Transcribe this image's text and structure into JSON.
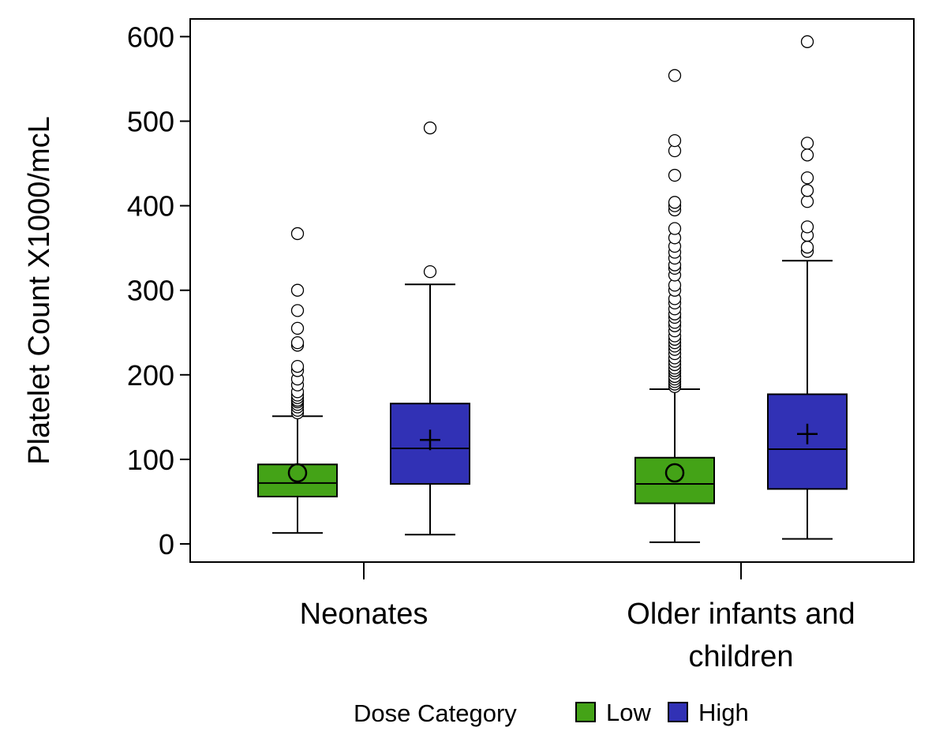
{
  "chart_data": {
    "type": "boxplot",
    "ylabel": "Platelet Count X1000/mcL",
    "xlabel": "",
    "ylim": [
      -20,
      625
    ],
    "yticks": [
      0,
      100,
      200,
      300,
      400,
      500,
      600
    ],
    "grid": false,
    "categories": [
      {
        "label_lines": [
          "Neonates"
        ]
      },
      {
        "label_lines": [
          "Older infants and",
          "children"
        ]
      }
    ],
    "legend": {
      "title": "Dose Category",
      "position": "bottom",
      "entries": [
        {
          "name": "Low",
          "color": "#44a317"
        },
        {
          "name": "High",
          "color": "#3131b5"
        }
      ]
    },
    "series": [
      {
        "name": "Low",
        "color": "#44a317",
        "mean_marker": "circle",
        "boxes": [
          {
            "category": "Neonates",
            "whisker_low": 13,
            "q1": 56,
            "median": 72,
            "q3": 94,
            "whisker_high": 151,
            "mean": 84,
            "outliers": [
              155,
              158,
              162,
              165,
              168,
              170,
              173,
              176,
              180,
              188,
              195,
              205,
              210,
              235,
              238,
              255,
              276,
              300,
              367
            ]
          },
          {
            "category": "Older infants and children",
            "whisker_low": 2,
            "q1": 48,
            "median": 71,
            "q3": 102,
            "whisker_high": 183,
            "mean": 84,
            "outliers": [
              186,
              189,
              192,
              195,
              198,
              202,
              205,
              208,
              212,
              216,
              220,
              225,
              230,
              234,
              238,
              242,
              246,
              252,
              258,
              262,
              268,
              272,
              278,
              285,
              290,
              300,
              306,
              318,
              326,
              330,
              338,
              345,
              352,
              362,
              373,
              395,
              400,
              404,
              436,
              465,
              477,
              554
            ]
          }
        ]
      },
      {
        "name": "High",
        "color": "#3131b5",
        "mean_marker": "plus",
        "boxes": [
          {
            "category": "Neonates",
            "whisker_low": 11,
            "q1": 71,
            "median": 113,
            "q3": 166,
            "whisker_high": 307,
            "mean": 123,
            "outliers": [
              322,
              492
            ]
          },
          {
            "category": "Older infants and children",
            "whisker_low": 6,
            "q1": 65,
            "median": 112,
            "q3": 177,
            "whisker_high": 335,
            "mean": 130,
            "outliers": [
              346,
              351,
              365,
              375,
              405,
              418,
              433,
              460,
              474,
              594
            ]
          }
        ]
      }
    ]
  }
}
